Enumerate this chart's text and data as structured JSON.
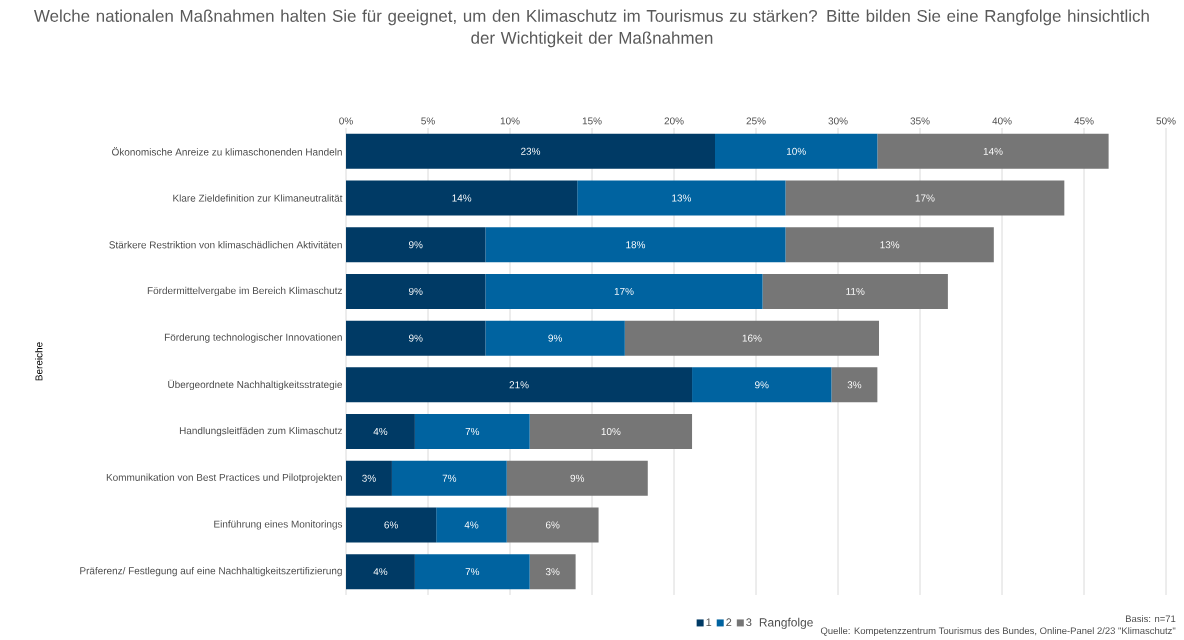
{
  "chart_data": {
    "type": "bar",
    "orientation": "horizontal",
    "stacked": true,
    "title": "Welche nationalen Maßnahmen halten Sie für geeignet, um den Klimaschutz im Tourismus zu stärken? Bitte bilden Sie eine Rangfolge hinsichtlich der Wichtigkeit der Maßnahmen",
    "ylabel": "Bereiche",
    "legend_title": "Rangfolge",
    "categories": [
      "Ökonomische Anreize zu klimaschonenden Handeln",
      "Klare Zieldefinition zur Klimaneutralität",
      "Stärkere Restriktion von klimaschädlichen Aktivitäten",
      "Fördermittelvergabe im Bereich Klimaschutz",
      "Förderung technologischer Innovationen",
      "Übergeordnete Nachhaltigkeitsstrategie",
      "Handlungsleitfäden zum Klimaschutz",
      "Kommunikation von Best Practices und Pilotprojekten",
      "Einführung eines Monitorings",
      "Präferenz/ Festlegung auf eine Nachhaltigkeitszertifizierung"
    ],
    "series": [
      {
        "name": "1",
        "color": "#003a65",
        "values": [
          22.5,
          14.1,
          8.5,
          8.5,
          8.5,
          21.1,
          4.2,
          2.8,
          5.5,
          4.2
        ],
        "value_labels": [
          "23%",
          "14%",
          "9%",
          "9%",
          "9%",
          "21%",
          "4%",
          "3%",
          "6%",
          "4%"
        ]
      },
      {
        "name": "2",
        "color": "#0063a0",
        "values": [
          9.9,
          12.7,
          18.3,
          16.9,
          8.5,
          8.5,
          7.0,
          7.0,
          4.3,
          7.0
        ],
        "value_labels": [
          "10%",
          "13%",
          "18%",
          "17%",
          "9%",
          "9%",
          "7%",
          "7%",
          "4%",
          "7%"
        ]
      },
      {
        "name": "3",
        "color": "#767676",
        "values": [
          14.1,
          17.0,
          12.7,
          11.3,
          15.5,
          2.8,
          9.9,
          8.6,
          5.6,
          2.8
        ],
        "value_labels": [
          "14%",
          "17%",
          "13%",
          "11%",
          "16%",
          "3%",
          "10%",
          "9%",
          "6%",
          "3%"
        ]
      }
    ],
    "xlim": [
      0,
      50
    ],
    "xticks": [
      {
        "value": 0,
        "label": "0%"
      },
      {
        "value": 5,
        "label": "5%"
      },
      {
        "value": 10,
        "label": "10%"
      },
      {
        "value": 15,
        "label": "15%"
      },
      {
        "value": 20,
        "label": "20%"
      },
      {
        "value": 25,
        "label": "25%"
      },
      {
        "value": 30,
        "label": "30%"
      },
      {
        "value": 35,
        "label": "35%"
      },
      {
        "value": 40,
        "label": "40%"
      },
      {
        "value": 45,
        "label": "45%"
      },
      {
        "value": 50,
        "label": "50%"
      }
    ],
    "grid": "x",
    "legend": "bottom",
    "annotations": [
      "Basis: n=71",
      "Quelle: Kompetenzzentrum Tourismus des Bundes, Online-Panel 2/23 \"Klimaschutz\""
    ]
  }
}
